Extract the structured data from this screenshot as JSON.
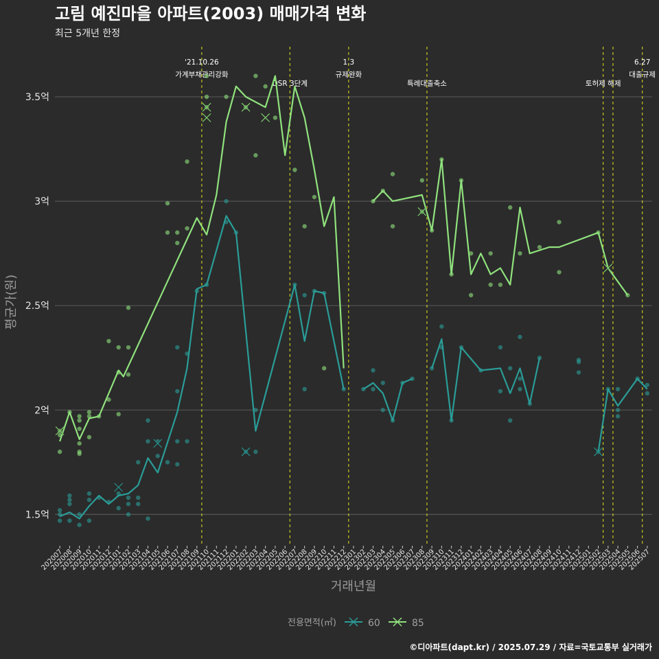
{
  "chart_data": {
    "type": "line",
    "title": "고림 예진마을 아파트(2003) 매매가격 변화",
    "subtitle": "최근 5개년 한정",
    "xlabel": "거래년월",
    "ylabel": "평균가(원)",
    "caption": "©디아파트(dapt.kr) / 2025.07.29 / 자료=국토교통부 실거래가",
    "yunit": "억",
    "ylim": [
      1.35,
      3.75
    ],
    "yticks": [
      {
        "value": 1.5,
        "label": "1.5억"
      },
      {
        "value": 2.0,
        "label": "2억"
      },
      {
        "value": 2.5,
        "label": "2.5억"
      },
      {
        "value": 3.0,
        "label": "3억"
      },
      {
        "value": 3.5,
        "label": "3.5억"
      }
    ],
    "categories": [
      "202007",
      "202008",
      "202009",
      "202010",
      "202011",
      "202012",
      "202101",
      "202102",
      "202103",
      "202104",
      "202105",
      "202106",
      "202107",
      "202108",
      "202109",
      "202110",
      "202111",
      "202112",
      "202201",
      "202202",
      "202203",
      "202204",
      "202205",
      "202206",
      "202207",
      "202208",
      "202209",
      "202210",
      "202211",
      "202212",
      "202301",
      "202302",
      "202303",
      "202304",
      "202305",
      "202306",
      "202307",
      "202308",
      "202309",
      "202310",
      "202311",
      "202312",
      "202401",
      "202402",
      "202403",
      "202404",
      "202405",
      "202406",
      "202407",
      "202408",
      "202409",
      "202410",
      "202411",
      "202412",
      "202501",
      "202502",
      "202503",
      "202504",
      "202505",
      "202506",
      "202507"
    ],
    "grid": true,
    "legend": {
      "title": "전용면적(㎡)",
      "position": "bottom",
      "entries": [
        {
          "name": "60",
          "color": "#2a9d98"
        },
        {
          "name": "85",
          "color": "#90e27d"
        }
      ]
    },
    "events": [
      {
        "x": 14.5,
        "lines": [
          "'21.10.26",
          "가계부채관리강화"
        ],
        "color": "#e8e61a"
      },
      {
        "x": 23.5,
        "lines": [
          "DSR 3단계"
        ],
        "color": "#e8e61a"
      },
      {
        "x": 29.5,
        "lines": [
          "1.3",
          "규제완화"
        ],
        "color": "#e8e61a"
      },
      {
        "x": 37.5,
        "lines": [
          "특례대출축소"
        ],
        "color": "#e8e61a"
      },
      {
        "x": 55.5,
        "lines": [
          "토허제 해제"
        ],
        "color": "#e8e61a"
      },
      {
        "x": 56.5,
        "lines": [],
        "color": "#e8e61a"
      },
      {
        "x": 59.5,
        "lines": [
          "6.27",
          "대출규제"
        ],
        "color": "#e8e61a"
      }
    ],
    "series": [
      {
        "name": "60",
        "color": "#2a9d98",
        "line": [
          [
            0,
            1.49
          ],
          [
            1,
            1.51
          ],
          [
            2,
            1.48
          ],
          [
            3,
            1.54
          ],
          [
            4,
            1.59
          ],
          [
            5,
            1.55
          ],
          [
            6,
            1.59
          ],
          [
            7,
            1.6
          ],
          [
            8,
            1.64
          ],
          [
            9,
            1.77
          ],
          [
            10,
            1.7
          ],
          [
            12,
            1.99
          ],
          [
            13,
            2.2
          ],
          [
            14,
            2.58
          ],
          [
            15,
            2.6
          ],
          [
            17,
            2.93
          ],
          [
            18,
            2.85
          ],
          [
            20,
            1.9
          ],
          [
            24,
            2.6
          ],
          [
            25,
            2.33
          ],
          [
            26,
            2.57
          ],
          [
            27,
            2.56
          ],
          [
            29,
            2.1
          ],
          null,
          [
            31,
            2.1
          ],
          [
            32,
            2.13
          ],
          [
            33,
            2.08
          ],
          [
            34,
            1.95
          ],
          [
            35,
            2.13
          ],
          [
            36,
            2.15
          ],
          null,
          [
            38,
            2.2
          ],
          [
            39,
            2.34
          ],
          [
            40,
            1.95
          ],
          [
            41,
            2.3
          ],
          [
            43,
            2.19
          ],
          [
            45,
            2.2
          ],
          [
            46,
            2.08
          ],
          [
            47,
            2.2
          ],
          [
            48,
            2.03
          ],
          [
            49,
            2.25
          ],
          null,
          [
            55,
            1.8
          ],
          [
            56,
            2.1
          ],
          [
            57,
            2.02
          ],
          [
            59,
            2.15
          ],
          [
            60,
            2.1
          ]
        ],
        "points": [
          [
            0,
            1.47
          ],
          [
            0,
            1.5
          ],
          [
            0,
            1.52
          ],
          [
            1,
            1.55
          ],
          [
            1,
            1.57
          ],
          [
            1,
            1.59
          ],
          [
            1,
            1.47
          ],
          [
            2,
            1.45
          ],
          [
            2,
            1.5
          ],
          [
            3,
            1.57
          ],
          [
            3,
            1.6
          ],
          [
            3,
            1.47
          ],
          [
            4,
            1.58
          ],
          [
            5,
            1.56
          ],
          [
            6,
            1.6
          ],
          [
            6,
            1.53
          ],
          [
            7,
            1.58
          ],
          [
            7,
            1.55
          ],
          [
            7,
            1.5
          ],
          [
            8,
            1.75
          ],
          [
            8,
            1.58
          ],
          [
            8,
            1.55
          ],
          [
            9,
            1.85
          ],
          [
            9,
            1.95
          ],
          [
            9,
            1.48
          ],
          [
            10,
            1.85
          ],
          [
            10,
            1.78
          ],
          [
            11,
            1.75
          ],
          [
            12,
            1.85
          ],
          [
            12,
            1.74
          ],
          [
            12,
            2.09
          ],
          [
            12,
            2.3
          ],
          [
            13,
            1.85
          ],
          [
            13,
            2.27
          ],
          [
            14,
            2.57
          ],
          [
            15,
            2.6
          ],
          [
            17,
            3.0
          ],
          [
            17,
            2.9
          ],
          [
            18,
            2.85
          ],
          [
            19,
            1.8
          ],
          [
            20,
            1.8
          ],
          [
            20,
            2.0
          ],
          [
            24,
            2.6
          ],
          [
            25,
            2.55
          ],
          [
            25,
            2.1
          ],
          [
            26,
            2.57
          ],
          [
            27,
            2.56
          ],
          [
            29,
            2.1
          ],
          [
            31,
            2.1
          ],
          [
            32,
            2.19
          ],
          [
            32,
            2.1
          ],
          [
            33,
            2.13
          ],
          [
            33,
            2.0
          ],
          [
            34,
            1.95
          ],
          [
            35,
            2.13
          ],
          [
            36,
            2.15
          ],
          [
            38,
            2.2
          ],
          [
            39,
            2.4
          ],
          [
            39,
            2.3
          ],
          [
            40,
            1.95
          ],
          [
            41,
            2.3
          ],
          [
            43,
            2.19
          ],
          [
            45,
            2.3
          ],
          [
            45,
            2.09
          ],
          [
            46,
            2.2
          ],
          [
            46,
            1.95
          ],
          [
            47,
            2.35
          ],
          [
            47,
            2.15
          ],
          [
            47,
            2.1
          ],
          [
            48,
            2.03
          ],
          [
            49,
            2.25
          ],
          [
            53,
            2.24
          ],
          [
            53,
            2.23
          ],
          [
            53,
            2.18
          ],
          [
            55,
            1.8
          ],
          [
            56,
            2.1
          ],
          [
            57,
            2.1
          ],
          [
            57,
            2.0
          ],
          [
            57,
            1.97
          ],
          [
            59,
            2.15
          ],
          [
            60,
            2.12
          ],
          [
            60,
            2.08
          ]
        ],
        "markers": [
          [
            6,
            1.63
          ],
          [
            10,
            1.84
          ],
          [
            19,
            1.8
          ],
          [
            55,
            1.8
          ]
        ]
      },
      {
        "name": "85",
        "color": "#90e27d",
        "line": [
          [
            0,
            1.85
          ],
          [
            1,
            1.99
          ],
          [
            2,
            1.86
          ],
          [
            3,
            1.96
          ],
          [
            4,
            1.97
          ],
          [
            6,
            2.19
          ],
          [
            6.5,
            2.16
          ],
          [
            14,
            2.92
          ],
          [
            15,
            2.84
          ],
          [
            16,
            3.03
          ],
          [
            17,
            3.38
          ],
          [
            18,
            3.55
          ],
          [
            19,
            3.5
          ],
          [
            21,
            3.45
          ],
          [
            22,
            3.6
          ],
          [
            23,
            3.22
          ],
          [
            24,
            3.55
          ],
          [
            25,
            3.4
          ],
          [
            26,
            3.15
          ],
          [
            27,
            2.88
          ],
          [
            28,
            3.02
          ],
          [
            29,
            2.2
          ],
          null,
          [
            32,
            3.0
          ],
          [
            33,
            3.05
          ],
          [
            34,
            3.0
          ],
          [
            37,
            3.03
          ],
          [
            38,
            2.86
          ],
          [
            39,
            3.2
          ],
          [
            40,
            2.65
          ],
          [
            41,
            3.1
          ],
          [
            42,
            2.65
          ],
          [
            43,
            2.75
          ],
          [
            44,
            2.65
          ],
          [
            45,
            2.68
          ],
          [
            46,
            2.6
          ],
          [
            47,
            2.97
          ],
          [
            48,
            2.75
          ],
          [
            50,
            2.78
          ],
          [
            51,
            2.78
          ],
          [
            55,
            2.85
          ],
          [
            56,
            2.68
          ],
          [
            58,
            2.55
          ]
        ],
        "points": [
          [
            0,
            1.8
          ],
          [
            0,
            1.88
          ],
          [
            0,
            1.9
          ],
          [
            1,
            1.99
          ],
          [
            2,
            1.97
          ],
          [
            2,
            1.95
          ],
          [
            2,
            1.91
          ],
          [
            2,
            1.84
          ],
          [
            2,
            1.8
          ],
          [
            2,
            1.79
          ],
          [
            3,
            1.99
          ],
          [
            3,
            1.97
          ],
          [
            3,
            1.87
          ],
          [
            4,
            1.97
          ],
          [
            5,
            2.33
          ],
          [
            5,
            2.05
          ],
          [
            6,
            2.3
          ],
          [
            6,
            1.98
          ],
          [
            6,
            2.18
          ],
          [
            7,
            2.49
          ],
          [
            7,
            2.3
          ],
          [
            7,
            2.17
          ],
          [
            11,
            2.99
          ],
          [
            11,
            2.85
          ],
          [
            12,
            2.85
          ],
          [
            12,
            2.8
          ],
          [
            13,
            2.87
          ],
          [
            13,
            3.19
          ],
          [
            15,
            3.6
          ],
          [
            15,
            3.5
          ],
          [
            15,
            3.45
          ],
          [
            17,
            3.5
          ],
          [
            19,
            3.45
          ],
          [
            20,
            3.6
          ],
          [
            20,
            3.22
          ],
          [
            21,
            3.55
          ],
          [
            22,
            3.4
          ],
          [
            24,
            3.15
          ],
          [
            25,
            2.88
          ],
          [
            26,
            3.02
          ],
          [
            27,
            2.2
          ],
          [
            32,
            3.0
          ],
          [
            33,
            3.05
          ],
          [
            34,
            3.13
          ],
          [
            34,
            2.88
          ],
          [
            37,
            3.1
          ],
          [
            37,
            2.95
          ],
          [
            38,
            2.86
          ],
          [
            39,
            3.2
          ],
          [
            40,
            2.65
          ],
          [
            41,
            3.1
          ],
          [
            42,
            2.75
          ],
          [
            42,
            2.55
          ],
          [
            44,
            2.75
          ],
          [
            44,
            2.6
          ],
          [
            45,
            2.6
          ],
          [
            46,
            2.97
          ],
          [
            47,
            2.75
          ],
          [
            49,
            2.78
          ],
          [
            51,
            2.9
          ],
          [
            51,
            2.66
          ],
          [
            55,
            2.85
          ],
          [
            58,
            2.55
          ]
        ],
        "markers": [
          [
            0,
            1.9
          ],
          [
            15,
            3.45
          ],
          [
            15,
            3.4
          ],
          [
            19,
            3.45
          ],
          [
            21,
            3.4
          ],
          [
            37,
            2.95
          ],
          [
            56,
            2.68
          ]
        ]
      }
    ]
  }
}
